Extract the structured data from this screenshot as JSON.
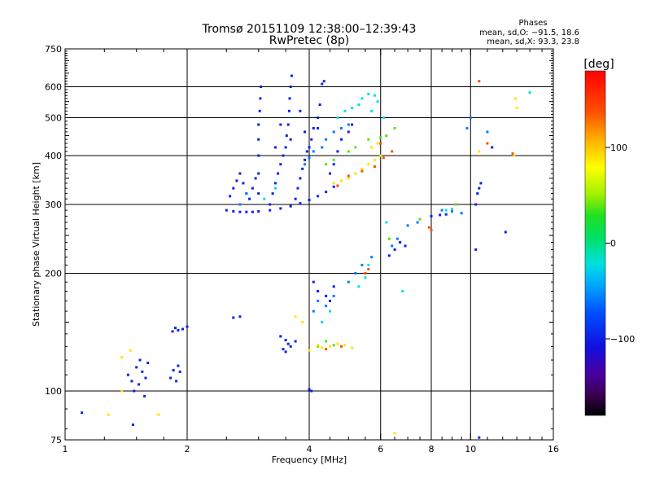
{
  "chart_data": {
    "type": "scatter",
    "title": "Tromsø 20151109 12:38:00–12:39:43",
    "subtitle": "RwPretec (8p)",
    "stats": {
      "heading": "Phases",
      "line_o": "mean, sd,O: −91.5, 18.6",
      "line_x": "mean, sd,X:  93.3, 23.8"
    },
    "xlabel": "Frequency [MHz]",
    "ylabel": "Stationary phase Virtual Height [km]",
    "x_scale": "log",
    "y_scale": "log",
    "xlim": [
      1,
      16
    ],
    "ylim": [
      75,
      750
    ],
    "x_ticks": [
      1,
      2,
      4,
      6,
      8,
      10,
      16
    ],
    "x_tick_labels": [
      "1",
      "2",
      "4",
      "6",
      "8",
      "10",
      "16"
    ],
    "x_minor_ticks": [
      1.25,
      1.5,
      1.75,
      2.5,
      3,
      3.5,
      4.5,
      5,
      5.5,
      6.5,
      7,
      7.5,
      8.5,
      9,
      9.5,
      11,
      12,
      13,
      14,
      15
    ],
    "y_ticks": [
      75,
      100,
      200,
      300,
      400,
      500,
      600,
      750
    ],
    "y_tick_labels": [
      "75",
      "100",
      "200",
      "300",
      "400",
      "500",
      "600",
      "750"
    ],
    "grid_x": [
      2,
      4,
      6,
      8,
      10
    ],
    "grid_y": [
      100,
      200,
      300,
      400,
      500,
      600
    ],
    "colorbar": {
      "label": "[deg]",
      "range": [
        -180,
        180
      ],
      "ticks": [
        100,
        0,
        -100
      ],
      "tick_labels": [
        "100",
        "0",
        "−100"
      ]
    },
    "series": [
      {
        "phase_deg": -100,
        "points": [
          [
            1.1,
            88
          ],
          [
            1.43,
            110
          ],
          [
            1.46,
            106
          ],
          [
            1.5,
            115
          ],
          [
            1.52,
            104
          ],
          [
            1.55,
            112
          ],
          [
            1.58,
            108
          ],
          [
            1.6,
            118
          ],
          [
            1.48,
            100
          ],
          [
            1.53,
            120
          ],
          [
            1.47,
            82
          ],
          [
            1.57,
            97
          ],
          [
            1.82,
            108
          ],
          [
            1.85,
            113
          ],
          [
            1.88,
            106
          ],
          [
            1.92,
            112
          ],
          [
            1.9,
            116
          ],
          [
            1.84,
            142
          ],
          [
            1.87,
            145
          ],
          [
            1.9,
            143
          ],
          [
            1.95,
            144
          ],
          [
            2.0,
            146
          ],
          [
            2.6,
            154
          ],
          [
            2.7,
            155
          ],
          [
            2.5,
            290
          ],
          [
            2.6,
            288
          ],
          [
            2.7,
            287
          ],
          [
            2.8,
            287
          ],
          [
            2.9,
            287
          ],
          [
            3.0,
            288
          ],
          [
            3.2,
            290
          ],
          [
            3.4,
            293
          ],
          [
            3.6,
            297
          ],
          [
            3.8,
            302
          ],
          [
            4.0,
            308
          ],
          [
            4.2,
            315
          ],
          [
            4.4,
            323
          ],
          [
            4.6,
            333
          ],
          [
            2.55,
            315
          ],
          [
            2.6,
            330
          ],
          [
            2.65,
            345
          ],
          [
            2.7,
            360
          ],
          [
            2.75,
            340
          ],
          [
            2.8,
            320
          ],
          [
            2.85,
            310
          ],
          [
            2.9,
            330
          ],
          [
            2.95,
            350
          ],
          [
            3.0,
            320
          ],
          [
            3.0,
            360
          ],
          [
            3.0,
            400
          ],
          [
            3.0,
            440
          ],
          [
            3.0,
            480
          ],
          [
            3.02,
            520
          ],
          [
            3.03,
            560
          ],
          [
            3.04,
            600
          ],
          [
            3.2,
            300
          ],
          [
            3.25,
            320
          ],
          [
            3.3,
            340
          ],
          [
            3.35,
            360
          ],
          [
            3.4,
            380
          ],
          [
            3.45,
            400
          ],
          [
            3.5,
            420
          ],
          [
            3.52,
            450
          ],
          [
            3.55,
            480
          ],
          [
            3.57,
            520
          ],
          [
            3.58,
            560
          ],
          [
            3.6,
            600
          ],
          [
            3.62,
            640
          ],
          [
            3.7,
            310
          ],
          [
            3.75,
            330
          ],
          [
            3.8,
            350
          ],
          [
            3.85,
            370
          ],
          [
            3.9,
            390
          ],
          [
            3.95,
            410
          ],
          [
            4.0,
            420
          ],
          [
            4.05,
            440
          ],
          [
            4.1,
            470
          ],
          [
            4.2,
            500
          ],
          [
            4.25,
            540
          ],
          [
            4.3,
            610
          ],
          [
            4.35,
            620
          ],
          [
            4.5,
            360
          ],
          [
            4.6,
            380
          ],
          [
            4.7,
            410
          ],
          [
            4.8,
            440
          ],
          [
            5.0,
            460
          ],
          [
            5.1,
            480
          ],
          [
            3.3,
            420
          ],
          [
            3.6,
            440
          ],
          [
            3.9,
            460
          ],
          [
            4.2,
            470
          ],
          [
            3.4,
            480
          ],
          [
            3.8,
            520
          ],
          [
            3.4,
            138
          ],
          [
            3.5,
            135
          ],
          [
            3.6,
            130
          ],
          [
            3.5,
            126
          ],
          [
            3.55,
            132
          ],
          [
            3.7,
            134
          ],
          [
            3.45,
            128
          ],
          [
            4.0,
            101
          ],
          [
            4.05,
            100
          ],
          [
            4.1,
            190
          ],
          [
            4.2,
            180
          ],
          [
            4.4,
            175
          ],
          [
            4.5,
            170
          ],
          [
            4.6,
            185
          ],
          [
            6.3,
            222
          ],
          [
            6.5,
            230
          ],
          [
            6.7,
            240
          ],
          [
            6.9,
            235
          ],
          [
            8.0,
            280
          ],
          [
            8.4,
            282
          ],
          [
            8.7,
            283
          ],
          [
            10.4,
            320
          ],
          [
            10.5,
            330
          ],
          [
            10.3,
            300
          ],
          [
            10.6,
            340
          ],
          [
            11.3,
            420
          ],
          [
            10.3,
            230
          ],
          [
            12.2,
            255
          ],
          [
            10.5,
            76
          ]
        ]
      },
      {
        "phase_deg": -60,
        "points": [
          [
            2.7,
            300
          ],
          [
            2.8,
            320
          ],
          [
            3.9,
            380
          ],
          [
            4.0,
            395
          ],
          [
            4.1,
            410
          ],
          [
            4.3,
            420
          ],
          [
            4.4,
            440
          ],
          [
            4.6,
            460
          ],
          [
            4.8,
            470
          ],
          [
            5.0,
            480
          ],
          [
            4.1,
            160
          ],
          [
            4.2,
            170
          ],
          [
            4.4,
            165
          ],
          [
            4.6,
            175
          ],
          [
            5.0,
            190
          ],
          [
            5.2,
            200
          ],
          [
            5.4,
            210
          ],
          [
            5.7,
            220
          ],
          [
            6.4,
            235
          ],
          [
            6.6,
            245
          ],
          [
            7.0,
            265
          ],
          [
            7.4,
            270
          ],
          [
            8.5,
            290
          ],
          [
            9.0,
            288
          ],
          [
            9.5,
            285
          ],
          [
            9.8,
            470
          ],
          [
            10.0,
            500
          ],
          [
            11.0,
            460
          ]
        ]
      },
      {
        "phase_deg": -20,
        "points": [
          [
            3.1,
            310
          ],
          [
            3.3,
            330
          ],
          [
            4.7,
            500
          ],
          [
            4.9,
            520
          ],
          [
            5.1,
            530
          ],
          [
            5.3,
            540
          ],
          [
            5.4,
            560
          ],
          [
            5.6,
            575
          ],
          [
            5.8,
            570
          ],
          [
            5.9,
            550
          ],
          [
            5.7,
            520
          ],
          [
            6.1,
            500
          ],
          [
            4.3,
            150
          ],
          [
            4.5,
            160
          ],
          [
            5.3,
            185
          ],
          [
            5.5,
            195
          ],
          [
            5.6,
            210
          ],
          [
            6.2,
            270
          ],
          [
            6.8,
            180
          ],
          [
            8.7,
            290
          ],
          [
            9.0,
            292
          ],
          [
            14.0,
            580
          ]
        ]
      },
      {
        "phase_deg": 40,
        "points": [
          [
            4.4,
            380
          ],
          [
            4.6,
            390
          ],
          [
            5.0,
            410
          ],
          [
            5.2,
            420
          ],
          [
            5.6,
            440
          ],
          [
            6.0,
            445
          ],
          [
            6.2,
            450
          ],
          [
            6.5,
            470
          ],
          [
            4.2,
            130
          ],
          [
            4.4,
            134
          ],
          [
            4.6,
            131
          ],
          [
            6.3,
            245
          ],
          [
            7.5,
            275
          ],
          [
            9.2,
            300
          ]
        ]
      },
      {
        "phase_deg": 90,
        "points": [
          [
            4.6,
            340
          ],
          [
            4.8,
            345
          ],
          [
            5.0,
            350
          ],
          [
            5.2,
            360
          ],
          [
            5.4,
            370
          ],
          [
            5.6,
            380
          ],
          [
            5.8,
            390
          ],
          [
            6.0,
            400
          ],
          [
            5.7,
            420
          ],
          [
            5.9,
            430
          ],
          [
            4.2,
            131
          ],
          [
            4.3,
            129
          ],
          [
            4.5,
            130
          ],
          [
            4.7,
            132
          ],
          [
            4.9,
            131
          ],
          [
            5.1,
            129
          ],
          [
            4.0,
            127
          ],
          [
            1.38,
            100
          ],
          [
            1.28,
            87
          ],
          [
            1.7,
            87
          ],
          [
            1.38,
            122
          ],
          [
            1.45,
            127
          ],
          [
            3.7,
            155
          ],
          [
            3.85,
            150
          ],
          [
            6.5,
            78
          ],
          [
            10.5,
            410
          ],
          [
            12.8,
            400
          ],
          [
            13.0,
            530
          ],
          [
            12.9,
            560
          ]
        ]
      },
      {
        "phase_deg": 140,
        "points": [
          [
            4.7,
            335
          ],
          [
            5.0,
            355
          ],
          [
            5.4,
            365
          ],
          [
            5.8,
            375
          ],
          [
            6.1,
            395
          ],
          [
            6.4,
            410
          ],
          [
            4.4,
            128
          ],
          [
            4.8,
            130
          ],
          [
            5.5,
            200
          ],
          [
            5.6,
            205
          ],
          [
            6.0,
            430
          ],
          [
            7.9,
            262
          ],
          [
            8.0,
            258
          ],
          [
            10.5,
            620
          ],
          [
            11.0,
            430
          ],
          [
            12.7,
            405
          ]
        ]
      }
    ]
  }
}
